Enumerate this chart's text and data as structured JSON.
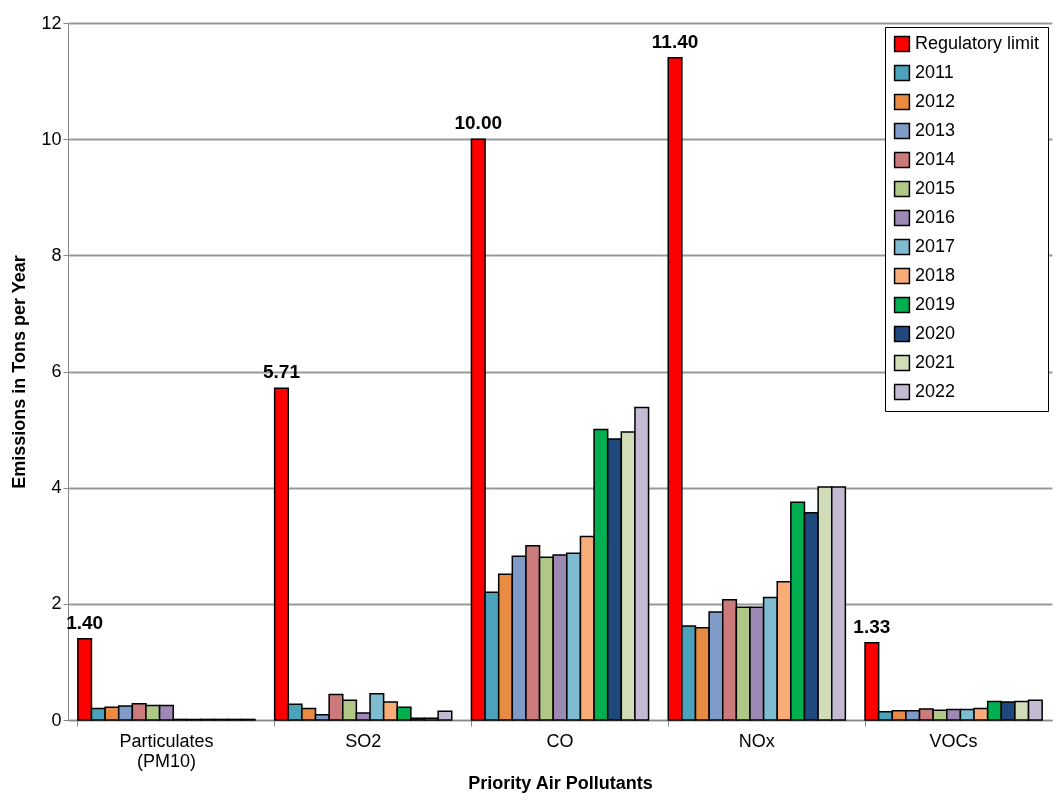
{
  "chart_data": {
    "type": "bar",
    "xlabel": "Priority Air Pollutants",
    "ylabel": "Emissions in Tons per Year",
    "categories": [
      "Particulates (PM10)",
      "SO2",
      "CO",
      "NOx",
      "VOCs"
    ],
    "ylim": [
      0,
      12
    ],
    "yticks": [
      0,
      2,
      4,
      6,
      8,
      10,
      12
    ],
    "grid": "y",
    "legend": "top right",
    "series": [
      {
        "name": "Regulatory limit",
        "color": "#ff0000",
        "values": [
          1.4,
          5.71,
          10.0,
          11.4,
          1.33
        ],
        "value_labels": [
          "1.40",
          "5.71",
          "10.00",
          "11.40",
          "1.33"
        ]
      },
      {
        "name": "2011",
        "color": "#4aa3bb",
        "values": [
          0.2,
          0.27,
          2.2,
          1.62,
          0.14
        ]
      },
      {
        "name": "2012",
        "color": "#e88c43",
        "values": [
          0.22,
          0.2,
          2.51,
          1.59,
          0.16
        ]
      },
      {
        "name": "2013",
        "color": "#7f9cc8",
        "values": [
          0.24,
          0.09,
          2.82,
          1.86,
          0.16
        ]
      },
      {
        "name": "2014",
        "color": "#cb7b7b",
        "values": [
          0.28,
          0.44,
          3.0,
          2.07,
          0.19
        ]
      },
      {
        "name": "2015",
        "color": "#b0c886",
        "values": [
          0.25,
          0.34,
          2.8,
          1.94,
          0.17
        ]
      },
      {
        "name": "2016",
        "color": "#9d89b4",
        "values": [
          0.25,
          0.12,
          2.84,
          1.94,
          0.18
        ]
      },
      {
        "name": "2017",
        "color": "#7fbcd2",
        "values": [
          0.01,
          0.45,
          2.87,
          2.11,
          0.18
        ]
      },
      {
        "name": "2018",
        "color": "#f8ac78",
        "values": [
          0.01,
          0.31,
          3.16,
          2.38,
          0.2
        ]
      },
      {
        "name": "2019",
        "color": "#00b050",
        "values": [
          0.01,
          0.22,
          5.0,
          3.75,
          0.32
        ]
      },
      {
        "name": "2020",
        "color": "#1f497d",
        "values": [
          0.01,
          0.03,
          4.84,
          3.57,
          0.31
        ]
      },
      {
        "name": "2021",
        "color": "#d0ddb8",
        "values": [
          0.01,
          0.03,
          4.96,
          4.01,
          0.32
        ]
      },
      {
        "name": "2022",
        "color": "#c4bbd3",
        "values": [
          0.01,
          0.15,
          5.38,
          4.01,
          0.34
        ]
      }
    ]
  }
}
